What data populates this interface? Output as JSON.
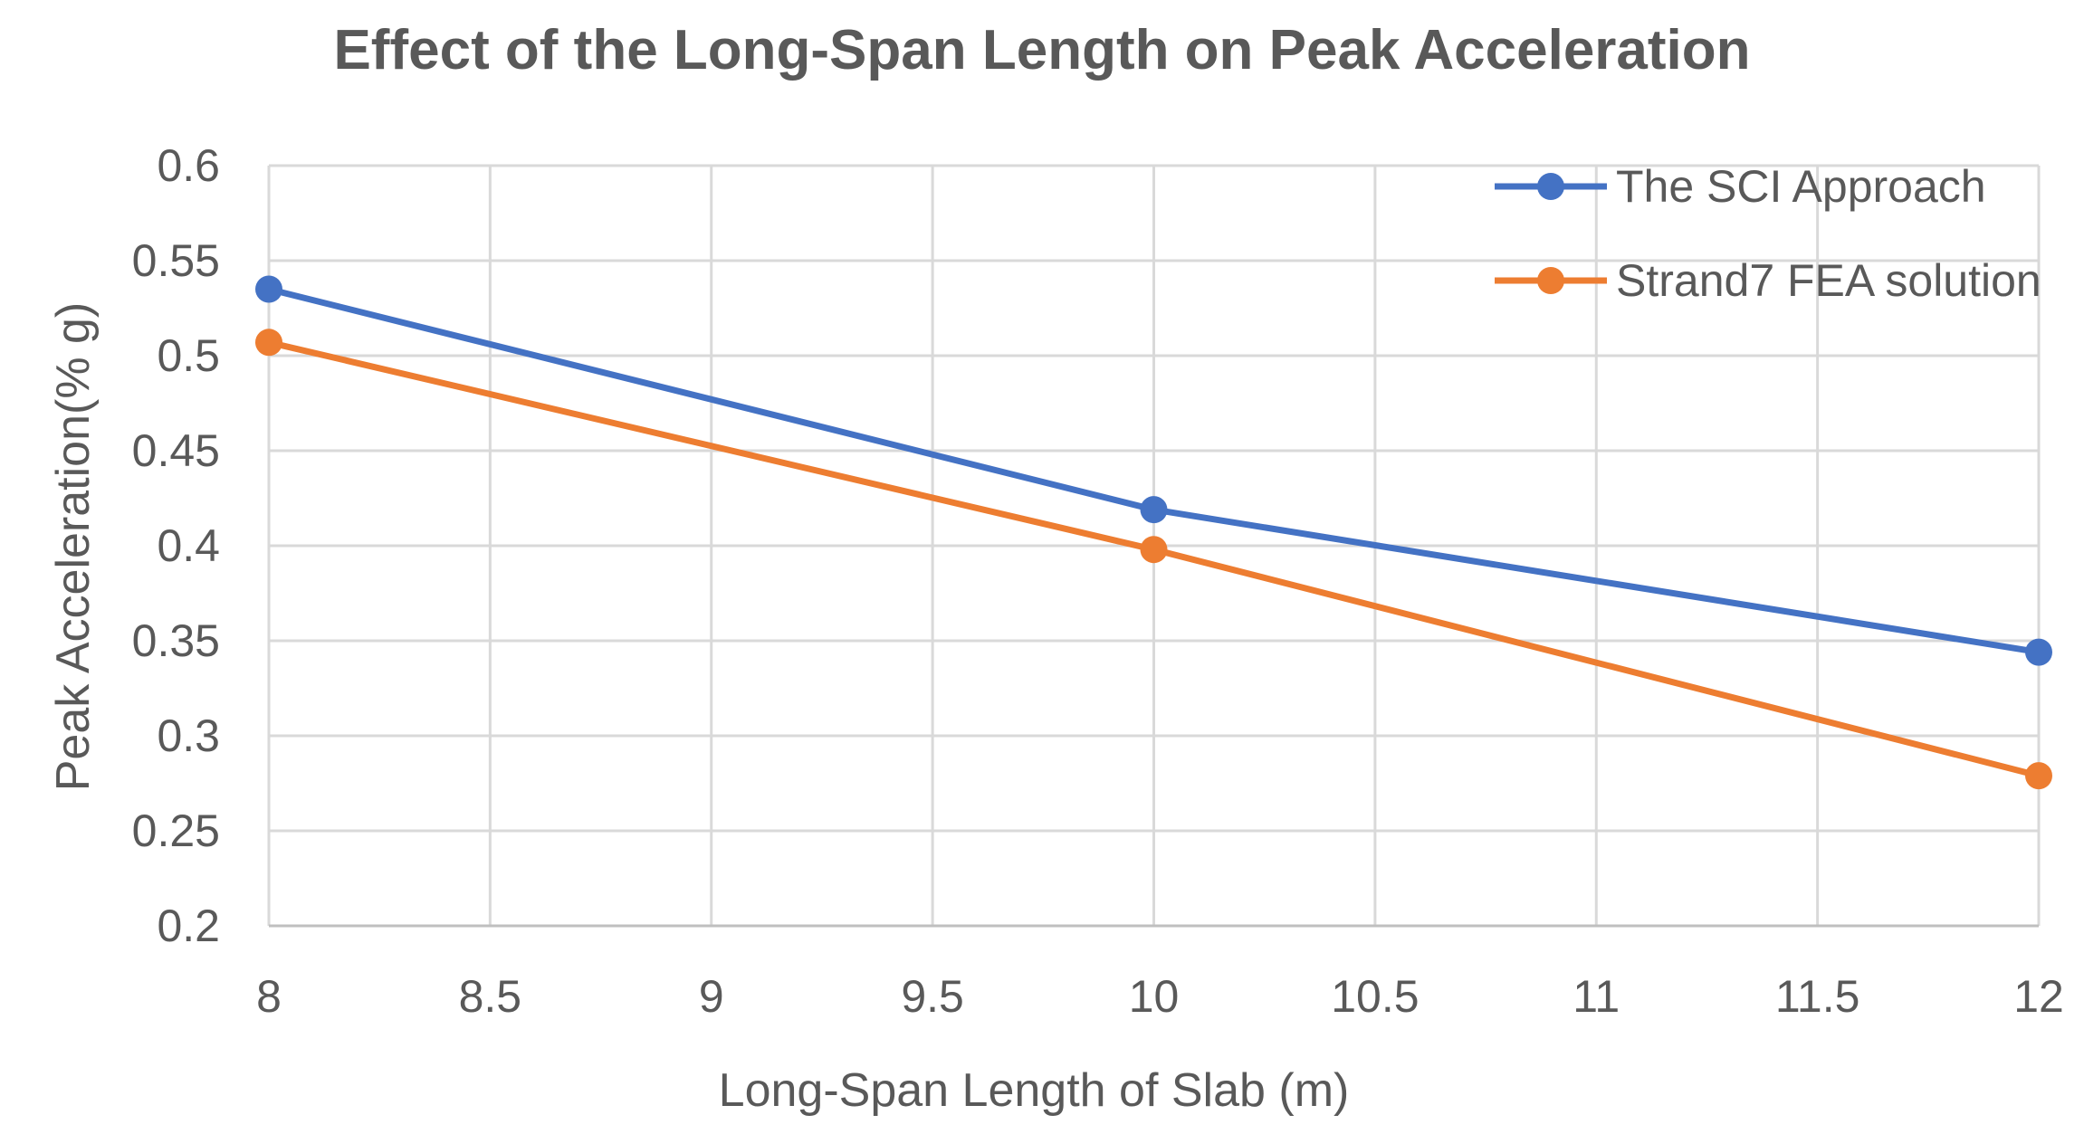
{
  "chart_data": {
    "type": "line",
    "title": "Effect of the Long-Span Length on Peak Acceleration",
    "xlabel": "Long-Span Length of Slab (m)",
    "ylabel": "Peak Acceleration(% g)",
    "xlim": [
      8,
      12
    ],
    "ylim": [
      0.2,
      0.6
    ],
    "x_ticks": [
      "8",
      "8.5",
      "9",
      "9.5",
      "10",
      "10.5",
      "11",
      "11.5",
      "12"
    ],
    "y_ticks": [
      "0.2",
      "0.25",
      "0.3",
      "0.35",
      "0.4",
      "0.45",
      "0.5",
      "0.55",
      "0.6"
    ],
    "grid": true,
    "legend_position": "top-right",
    "series": [
      {
        "name": "The SCI Approach",
        "color": "#4472C4",
        "x": [
          8,
          10,
          12
        ],
        "values": [
          0.535,
          0.419,
          0.344
        ]
      },
      {
        "name": "Strand7 FEA solution",
        "color": "#ED7D31",
        "x": [
          8,
          10,
          12
        ],
        "values": [
          0.507,
          0.398,
          0.279
        ]
      }
    ]
  }
}
